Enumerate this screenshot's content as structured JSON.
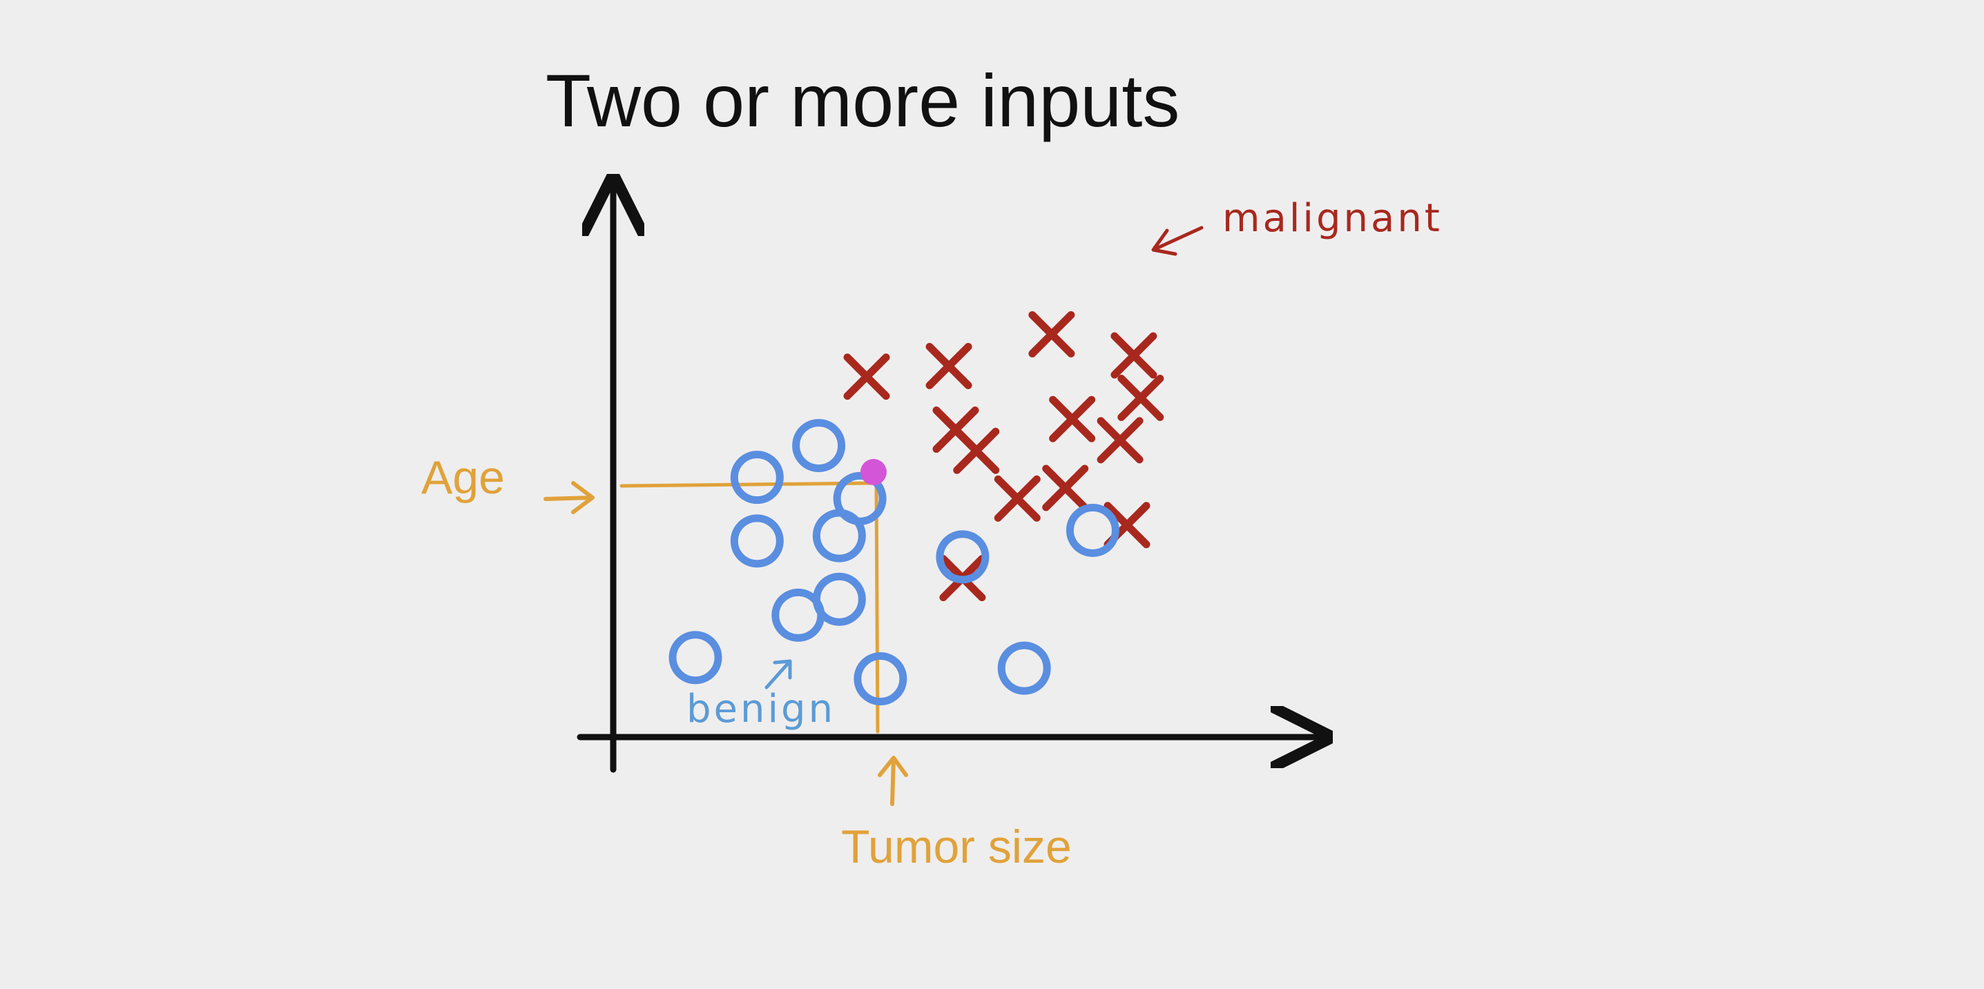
{
  "chart_data": {
    "type": "scatter",
    "title": "Two or more inputs",
    "xlabel": "Tumor size",
    "ylabel": "Age",
    "xlim": [
      0,
      100
    ],
    "ylim": [
      0,
      100
    ],
    "grid": false,
    "series": [
      {
        "name": "malignant",
        "marker": "x",
        "color": "#a8281e",
        "points": [
          {
            "x": 37,
            "y": 68
          },
          {
            "x": 49,
            "y": 70
          },
          {
            "x": 64,
            "y": 76
          },
          {
            "x": 76,
            "y": 72
          },
          {
            "x": 50,
            "y": 58
          },
          {
            "x": 53,
            "y": 54
          },
          {
            "x": 67,
            "y": 60
          },
          {
            "x": 77,
            "y": 64
          },
          {
            "x": 74,
            "y": 56
          },
          {
            "x": 59,
            "y": 45
          },
          {
            "x": 66,
            "y": 47
          },
          {
            "x": 75,
            "y": 40
          },
          {
            "x": 51,
            "y": 30
          }
        ]
      },
      {
        "name": "benign",
        "marker": "o",
        "color": "#5a8ee0",
        "points": [
          {
            "x": 21,
            "y": 49
          },
          {
            "x": 30,
            "y": 55
          },
          {
            "x": 21,
            "y": 37
          },
          {
            "x": 33,
            "y": 38
          },
          {
            "x": 36,
            "y": 45
          },
          {
            "x": 33,
            "y": 26
          },
          {
            "x": 27,
            "y": 23
          },
          {
            "x": 12,
            "y": 15
          },
          {
            "x": 39,
            "y": 11
          },
          {
            "x": 51,
            "y": 34
          },
          {
            "x": 60,
            "y": 13
          },
          {
            "x": 70,
            "y": 39
          }
        ]
      }
    ],
    "highlight": {
      "x": 38,
      "y": 50,
      "color": "#d455d8"
    },
    "guide_color": "#e0a23a"
  },
  "annotations": {
    "malignant": "malignant",
    "benign": "benign"
  }
}
